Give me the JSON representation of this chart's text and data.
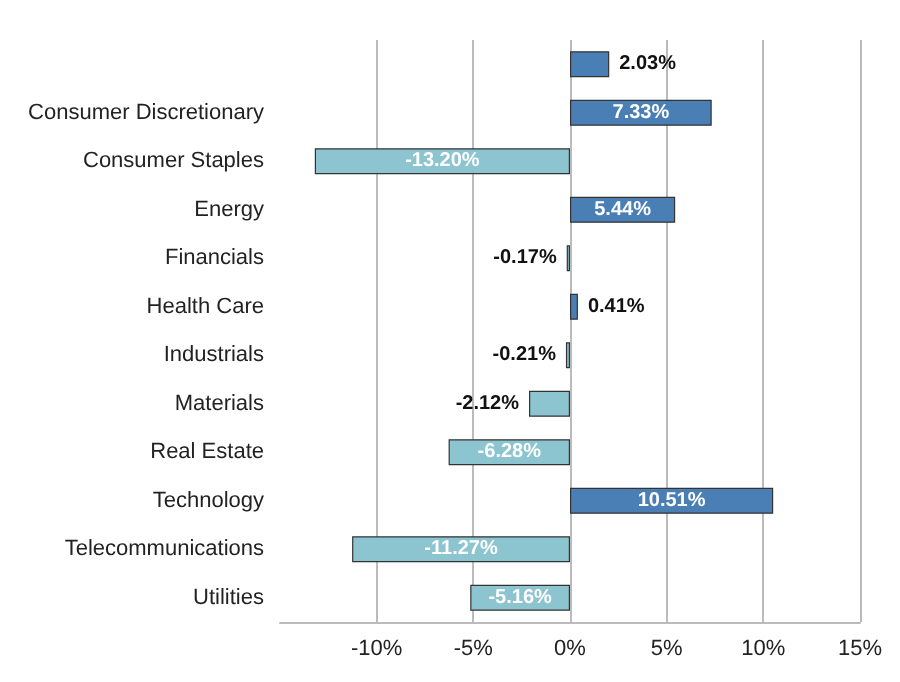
{
  "chart_data": {
    "type": "bar",
    "orientation": "horizontal",
    "categories": [
      null,
      "Consumer Discretionary",
      "Consumer Staples",
      "Energy",
      "Financials",
      "Health Care",
      "Industrials",
      "Materials",
      "Real Estate",
      "Technology",
      "Telecommunications",
      "Utilities"
    ],
    "values": [
      2.03,
      7.33,
      -13.2,
      5.44,
      -0.17,
      0.41,
      -0.21,
      -2.12,
      -6.28,
      10.51,
      -11.27,
      -5.16
    ],
    "value_labels": [
      "2.03%",
      "7.33%",
      "-13.20%",
      "5.44%",
      "-0.17%",
      "0.41%",
      "-0.21%",
      "-2.12%",
      "-6.28%",
      "10.51%",
      "-11.27%",
      "-5.16%"
    ],
    "colors": [
      "#4a7fb5",
      "#4a7fb5",
      "#8cc4d0",
      "#4a7fb5",
      "#8cc4d0",
      "#4a7fb5",
      "#8cc4d0",
      "#8cc4d0",
      "#8cc4d0",
      "#4a7fb5",
      "#8cc4d0",
      "#8cc4d0"
    ],
    "xlim": [
      -15,
      15
    ],
    "xticks": [
      {
        "value": -10,
        "label": "-10%"
      },
      {
        "value": -5,
        "label": "-5%"
      },
      {
        "value": 0,
        "label": "0%"
      },
      {
        "value": 5,
        "label": "5%"
      },
      {
        "value": 10,
        "label": "10%"
      },
      {
        "value": 15,
        "label": "15%"
      }
    ],
    "grid": "x"
  }
}
